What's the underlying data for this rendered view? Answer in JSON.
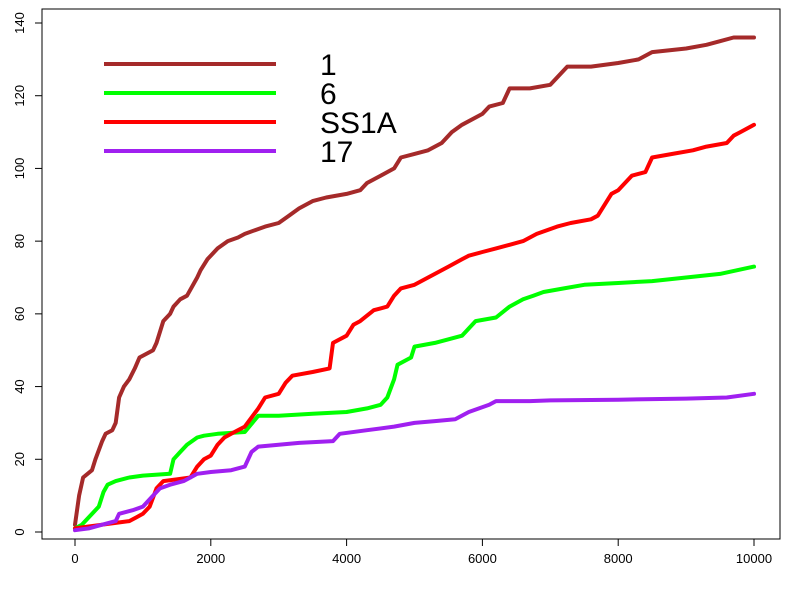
{
  "chart_data": {
    "type": "line",
    "title": "",
    "xlabel": "",
    "ylabel": "",
    "xlim": [
      0,
      10000
    ],
    "ylim": [
      0,
      140
    ],
    "xticks": [
      0,
      2000,
      4000,
      6000,
      8000,
      10000
    ],
    "yticks": [
      0,
      20,
      40,
      60,
      80,
      100,
      120,
      140
    ],
    "xtick_labels": [
      "0",
      "2000",
      "4000",
      "6000",
      "8000",
      "10000"
    ],
    "ytick_labels": [
      "0",
      "20",
      "40",
      "60",
      "80",
      "100",
      "120",
      "140"
    ],
    "grid": false,
    "legend_position": "top-left",
    "series": [
      {
        "name": "1",
        "color": "#a52a2a",
        "points": [
          [
            0,
            2
          ],
          [
            60,
            10
          ],
          [
            120,
            15
          ],
          [
            250,
            17
          ],
          [
            300,
            20
          ],
          [
            400,
            25
          ],
          [
            450,
            27
          ],
          [
            550,
            28
          ],
          [
            600,
            30
          ],
          [
            650,
            37
          ],
          [
            720,
            40
          ],
          [
            800,
            42
          ],
          [
            880,
            45
          ],
          [
            950,
            48
          ],
          [
            1050,
            49
          ],
          [
            1150,
            50
          ],
          [
            1200,
            52
          ],
          [
            1300,
            58
          ],
          [
            1400,
            60
          ],
          [
            1450,
            62
          ],
          [
            1550,
            64
          ],
          [
            1650,
            65
          ],
          [
            1800,
            70
          ],
          [
            1850,
            72
          ],
          [
            1950,
            75
          ],
          [
            2100,
            78
          ],
          [
            2250,
            80
          ],
          [
            2400,
            81
          ],
          [
            2500,
            82
          ],
          [
            2650,
            83
          ],
          [
            2800,
            84
          ],
          [
            3000,
            85
          ],
          [
            3150,
            87
          ],
          [
            3300,
            89
          ],
          [
            3500,
            91
          ],
          [
            3700,
            92
          ],
          [
            4000,
            93
          ],
          [
            4200,
            94
          ],
          [
            4300,
            96
          ],
          [
            4500,
            98
          ],
          [
            4700,
            100
          ],
          [
            4800,
            103
          ],
          [
            5000,
            104
          ],
          [
            5200,
            105
          ],
          [
            5300,
            106
          ],
          [
            5400,
            107
          ],
          [
            5550,
            110
          ],
          [
            5700,
            112
          ],
          [
            6000,
            115
          ],
          [
            6100,
            117
          ],
          [
            6300,
            118
          ],
          [
            6400,
            122
          ],
          [
            6700,
            122
          ],
          [
            7000,
            123
          ],
          [
            7150,
            126
          ],
          [
            7250,
            128
          ],
          [
            7600,
            128
          ],
          [
            8000,
            129
          ],
          [
            8300,
            130
          ],
          [
            8500,
            132
          ],
          [
            9000,
            133
          ],
          [
            9300,
            134
          ],
          [
            9500,
            135
          ],
          [
            9700,
            136
          ],
          [
            10000,
            136
          ]
        ]
      },
      {
        "name": "6",
        "color": "#00ff00",
        "points": [
          [
            0,
            1
          ],
          [
            100,
            2
          ],
          [
            200,
            4
          ],
          [
            350,
            7
          ],
          [
            420,
            11
          ],
          [
            480,
            13
          ],
          [
            600,
            14
          ],
          [
            800,
            15
          ],
          [
            1000,
            15.5
          ],
          [
            1400,
            16
          ],
          [
            1450,
            20
          ],
          [
            1550,
            22
          ],
          [
            1650,
            24
          ],
          [
            1800,
            26
          ],
          [
            1900,
            26.5
          ],
          [
            2100,
            27
          ],
          [
            2500,
            27.5
          ],
          [
            2700,
            32
          ],
          [
            3000,
            32
          ],
          [
            3500,
            32.5
          ],
          [
            4000,
            33
          ],
          [
            4300,
            34
          ],
          [
            4500,
            35
          ],
          [
            4600,
            37
          ],
          [
            4700,
            42
          ],
          [
            4750,
            46
          ],
          [
            4850,
            47
          ],
          [
            4950,
            48
          ],
          [
            5000,
            51
          ],
          [
            5300,
            52
          ],
          [
            5500,
            53
          ],
          [
            5700,
            54
          ],
          [
            5900,
            58
          ],
          [
            6200,
            59
          ],
          [
            6400,
            62
          ],
          [
            6600,
            64
          ],
          [
            6750,
            65
          ],
          [
            6900,
            66
          ],
          [
            7200,
            67
          ],
          [
            7500,
            68
          ],
          [
            8000,
            68.5
          ],
          [
            8500,
            69
          ],
          [
            9000,
            70
          ],
          [
            9500,
            71
          ],
          [
            10000,
            73
          ]
        ]
      },
      {
        "name": "SS1A",
        "color": "#ff0000",
        "points": [
          [
            0,
            1
          ],
          [
            200,
            1.5
          ],
          [
            400,
            2
          ],
          [
            600,
            2.5
          ],
          [
            800,
            3
          ],
          [
            900,
            4
          ],
          [
            1000,
            5
          ],
          [
            1100,
            7
          ],
          [
            1200,
            12
          ],
          [
            1300,
            14
          ],
          [
            1500,
            14.5
          ],
          [
            1700,
            15
          ],
          [
            1800,
            18
          ],
          [
            1900,
            20
          ],
          [
            2000,
            21
          ],
          [
            2100,
            24
          ],
          [
            2200,
            26
          ],
          [
            2300,
            27
          ],
          [
            2500,
            29
          ],
          [
            2700,
            34
          ],
          [
            2800,
            37
          ],
          [
            3000,
            38
          ],
          [
            3100,
            41
          ],
          [
            3200,
            43
          ],
          [
            3500,
            44
          ],
          [
            3750,
            45
          ],
          [
            3800,
            52
          ],
          [
            4000,
            54
          ],
          [
            4100,
            57
          ],
          [
            4200,
            58
          ],
          [
            4400,
            61
          ],
          [
            4600,
            62
          ],
          [
            4700,
            65
          ],
          [
            4800,
            67
          ],
          [
            5000,
            68
          ],
          [
            5200,
            70
          ],
          [
            5400,
            72
          ],
          [
            5500,
            73
          ],
          [
            5700,
            75
          ],
          [
            5800,
            76
          ],
          [
            6000,
            77
          ],
          [
            6200,
            78
          ],
          [
            6400,
            79
          ],
          [
            6600,
            80
          ],
          [
            6800,
            82
          ],
          [
            7100,
            84
          ],
          [
            7300,
            85
          ],
          [
            7600,
            86
          ],
          [
            7700,
            87
          ],
          [
            7800,
            90
          ],
          [
            7900,
            93
          ],
          [
            8000,
            94
          ],
          [
            8100,
            96
          ],
          [
            8200,
            98
          ],
          [
            8400,
            99
          ],
          [
            8500,
            103
          ],
          [
            8800,
            104
          ],
          [
            9100,
            105
          ],
          [
            9300,
            106
          ],
          [
            9600,
            107
          ],
          [
            9700,
            109
          ],
          [
            9800,
            110
          ],
          [
            10000,
            112
          ]
        ]
      },
      {
        "name": "17",
        "color": "#a020f0",
        "points": [
          [
            0,
            0.5
          ],
          [
            200,
            1
          ],
          [
            400,
            2
          ],
          [
            600,
            3
          ],
          [
            650,
            5
          ],
          [
            850,
            6
          ],
          [
            1000,
            7
          ],
          [
            1150,
            10
          ],
          [
            1250,
            12
          ],
          [
            1400,
            13
          ],
          [
            1600,
            14
          ],
          [
            1700,
            15
          ],
          [
            1800,
            16
          ],
          [
            2000,
            16.5
          ],
          [
            2300,
            17
          ],
          [
            2500,
            18
          ],
          [
            2600,
            22
          ],
          [
            2700,
            23.5
          ],
          [
            3000,
            24
          ],
          [
            3300,
            24.5
          ],
          [
            3800,
            25
          ],
          [
            3900,
            27
          ],
          [
            4300,
            28
          ],
          [
            4700,
            29
          ],
          [
            5000,
            30
          ],
          [
            5300,
            30.5
          ],
          [
            5600,
            31
          ],
          [
            5800,
            33
          ],
          [
            6100,
            35
          ],
          [
            6200,
            36
          ],
          [
            6700,
            36
          ],
          [
            7000,
            36.2
          ],
          [
            8000,
            36.4
          ],
          [
            9000,
            36.7
          ],
          [
            9600,
            37
          ],
          [
            10000,
            38
          ]
        ]
      }
    ]
  }
}
